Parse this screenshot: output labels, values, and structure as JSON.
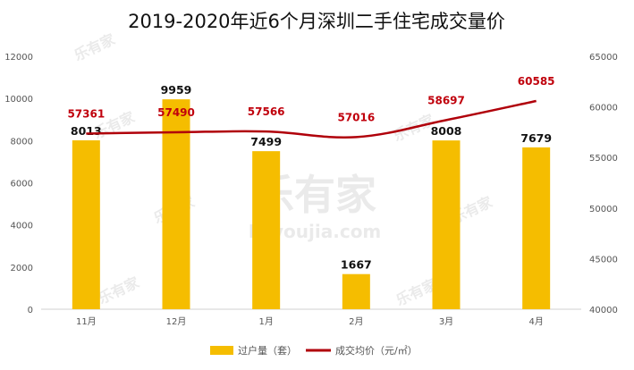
{
  "chart_data": {
    "type": "bar",
    "title": "2019-2020年近6个月深圳二手住宅成交量价",
    "categories": [
      "11月",
      "12月",
      "1月",
      "2月",
      "3月",
      "4月"
    ],
    "series": [
      {
        "name": "过户量（套）",
        "type": "bar",
        "axis": "left",
        "values": [
          8013,
          9959,
          7499,
          1667,
          8008,
          7679
        ],
        "color": "#f5bd00"
      },
      {
        "name": "成交均价（元/㎡）",
        "type": "line",
        "axis": "right",
        "values": [
          57361,
          57490,
          57566,
          57016,
          58697,
          60585
        ],
        "color": "#b0000a"
      }
    ],
    "y_left": {
      "min": 0,
      "max": 12000,
      "ticks": [
        0,
        2000,
        4000,
        6000,
        8000,
        10000,
        12000
      ]
    },
    "y_right": {
      "min": 40000,
      "max": 65000,
      "ticks": [
        40000,
        45000,
        50000,
        55000,
        60000,
        65000
      ]
    },
    "legend_position": "bottom",
    "grid": false
  },
  "watermark": {
    "brand": "乐有家",
    "site": "Leyoujia.com"
  }
}
